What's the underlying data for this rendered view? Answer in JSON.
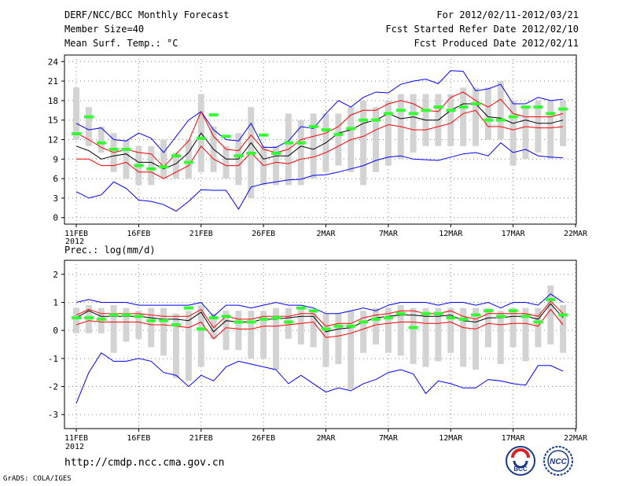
{
  "header": {
    "line1_left": "DERF/NCC/BCC Monthly Forecast",
    "line2_left": "Member Size=40",
    "line3_left": "Mean Surf. Temp.: °C",
    "line1_right": "For 2012/02/11-2012/03/21",
    "line2_right": "Fcst Started Refer Date 2012/02/10",
    "line3_right": "Fcst Produced Date 2012/02/11"
  },
  "footer": {
    "url": "http://cmdp.ncc.cma.gov.cn",
    "grads": "GrADS: COLA/IGES",
    "logo_bcc": "BCC",
    "logo_ncc": "NCC"
  },
  "colors": {
    "max_min": "#0000ff",
    "quartile": "#ff0000",
    "mean": "#000000",
    "marker": "#33ff33",
    "box": "#d3d3d3",
    "grid": "#808080"
  },
  "chart_data": [
    {
      "type": "box-line",
      "title": "",
      "ylim": [
        -1,
        25
      ],
      "yticks": [
        0,
        3,
        6,
        9,
        12,
        15,
        18,
        21,
        24
      ],
      "xticks": [
        "11FEB",
        "16FEB",
        "21FEB",
        "26FEB",
        "2MAR",
        "7MAR",
        "12MAR",
        "17MAR",
        "22MAR"
      ],
      "xtick_index": [
        0,
        5,
        10,
        15,
        20,
        25,
        30,
        35,
        40
      ],
      "year_label": "2012",
      "box_low": [
        12,
        11,
        10,
        7,
        6,
        5,
        5,
        6,
        6,
        6,
        7,
        7,
        6,
        5,
        3,
        5,
        5,
        5,
        5,
        6,
        7,
        8,
        7,
        5,
        7,
        8,
        9,
        10,
        11,
        11,
        11,
        11,
        11,
        12,
        12,
        8,
        9,
        10,
        9,
        11
      ],
      "box_high": [
        20,
        17,
        14,
        13,
        12,
        11,
        11,
        12,
        10,
        12,
        19,
        14,
        11,
        13,
        17,
        11,
        11,
        16,
        15,
        16,
        16,
        16,
        17,
        18,
        17,
        18,
        19,
        19,
        19,
        19,
        19,
        20,
        20,
        20,
        21,
        18,
        17,
        18,
        18,
        18
      ],
      "series": [
        {
          "name": "max",
          "values": [
            14.5,
            13.5,
            13.8,
            12,
            11.8,
            13,
            12.2,
            10,
            12.5,
            15,
            16.3,
            13.5,
            12,
            11.8,
            14.5,
            10.8,
            10.8,
            11.8,
            14,
            13.7,
            16,
            18,
            17,
            18.5,
            19.3,
            19.2,
            20.5,
            21,
            21.3,
            20.6,
            22.6,
            22.5,
            19.5,
            19.8,
            20.5,
            17.5,
            17.5,
            18.5,
            18,
            18.2
          ]
        },
        {
          "name": "q3",
          "values": [
            13,
            12,
            10.8,
            10,
            10.5,
            10,
            9.8,
            7.8,
            9.8,
            11.8,
            16.3,
            12.5,
            10.5,
            10.3,
            12.7,
            10.5,
            10,
            10.5,
            12,
            12.5,
            13,
            14,
            15.8,
            16.5,
            16.5,
            17.5,
            18,
            17.5,
            16.5,
            16.3,
            18.5,
            19.3,
            18,
            17,
            18.2,
            16,
            15.5,
            15.5,
            15.5,
            16
          ]
        },
        {
          "name": "mean",
          "values": [
            11,
            10.3,
            9,
            9.5,
            9.8,
            8.5,
            8.5,
            7.5,
            8.3,
            10,
            13,
            10.5,
            9,
            9,
            11.5,
            9,
            9.5,
            9.5,
            11,
            10.5,
            11.5,
            13,
            13.5,
            14.5,
            15,
            16,
            15.2,
            15.5,
            15,
            15,
            16.5,
            17.5,
            17.5,
            15.5,
            15.3,
            14.5,
            15,
            14.5,
            14.5,
            15
          ]
        },
        {
          "name": "q1",
          "values": [
            9,
            9,
            8,
            8,
            8.5,
            7,
            7,
            6,
            7,
            8,
            11,
            9,
            8,
            8,
            10,
            8,
            8.5,
            8.3,
            9,
            9.3,
            10,
            11,
            12,
            12.5,
            13.5,
            14.3,
            14,
            13.5,
            13.5,
            14,
            14.5,
            16,
            16.5,
            14,
            14,
            13.5,
            14,
            13.8,
            13.8,
            14
          ]
        },
        {
          "name": "min",
          "values": [
            4,
            3,
            3.5,
            5.5,
            4.5,
            2.7,
            2.5,
            2,
            1,
            2.5,
            4.3,
            4.2,
            4.2,
            1.3,
            4.7,
            5.2,
            5.5,
            5.8,
            5.9,
            6.5,
            6.6,
            7,
            7.5,
            8,
            8.8,
            9.3,
            9.5,
            9,
            8.9,
            8.8,
            9.3,
            9.8,
            10,
            9.5,
            11.5,
            10,
            10.5,
            9.5,
            9.3,
            9.2
          ]
        },
        {
          "name": "marker",
          "values": [
            12.9,
            15.5,
            11.5,
            10.5,
            10.5,
            8,
            7.5,
            7.8,
            9.5,
            8.5,
            12.2,
            15.8,
            12.5,
            9.5,
            9.9,
            12.7,
            9.9,
            11.5,
            11.5,
            14,
            13.5,
            12.8,
            13.7,
            15,
            15,
            16,
            16.5,
            16,
            16.5,
            17,
            16.5,
            17,
            17.5,
            15,
            15,
            15.5,
            17,
            17,
            16,
            16.7
          ]
        }
      ]
    },
    {
      "type": "box-line",
      "title": "Prec.: log(mm/d)",
      "ylim": [
        -3.5,
        2.5
      ],
      "yticks": [
        -3,
        -2,
        -1,
        0,
        1,
        2
      ],
      "xticks": [
        "11FEB",
        "16FEB",
        "21FEB",
        "26FEB",
        "2MAR",
        "7MAR",
        "12MAR",
        "17MAR",
        "22MAR"
      ],
      "xtick_index": [
        0,
        5,
        10,
        15,
        20,
        25,
        30,
        35,
        40
      ],
      "year_label": "2012",
      "box_low": [
        -0.1,
        -0.1,
        -0.1,
        -0.8,
        -0.4,
        -0.3,
        -0.6,
        -0.9,
        -1.7,
        -1.8,
        -1.3,
        -0.3,
        -0.7,
        -0.7,
        -1,
        -1,
        -1.4,
        -0.3,
        -0.5,
        -0.6,
        -1.3,
        -1.2,
        -2.1,
        -0.8,
        -0.5,
        -0.8,
        -0.9,
        -1.2,
        -1.3,
        -1.1,
        -0.8,
        -1.3,
        -1.4,
        -0.6,
        -1.2,
        -0.6,
        -1.1,
        -0.6,
        -0.5,
        -0.8
      ],
      "box_high": [
        0.8,
        0.9,
        0.8,
        0.9,
        0.8,
        0.7,
        0.8,
        0.8,
        0.6,
        0.7,
        0.9,
        0.6,
        0.7,
        0.7,
        0.7,
        0.7,
        0.8,
        0.8,
        0.8,
        0.7,
        0.6,
        0.6,
        0.7,
        0.7,
        0.8,
        0.8,
        0.9,
        0.8,
        0.8,
        0.8,
        0.8,
        0.8,
        0.8,
        0.8,
        0.7,
        0.8,
        0.8,
        0.8,
        1.6,
        0.9
      ],
      "series": [
        {
          "name": "max",
          "values": [
            1,
            1.1,
            1,
            1,
            1,
            0.9,
            0.9,
            0.9,
            0.9,
            0.9,
            1,
            0.5,
            0.9,
            0.9,
            0.8,
            0.9,
            1,
            0.9,
            0.9,
            0.8,
            0.6,
            0.6,
            0.7,
            0.8,
            0.7,
            0.9,
            1,
            1,
            1,
            0.9,
            1,
            1,
            0.9,
            1,
            0.8,
            1,
            1,
            0.9,
            1.3,
            1
          ]
        },
        {
          "name": "q3",
          "values": [
            0.55,
            0.75,
            0.6,
            0.6,
            0.6,
            0.6,
            0.55,
            0.5,
            0.5,
            0.5,
            0.75,
            0.1,
            0.5,
            0.4,
            0.4,
            0.5,
            0.5,
            0.5,
            0.6,
            0.6,
            0.15,
            0.25,
            0.25,
            0.45,
            0.55,
            0.6,
            0.7,
            0.7,
            0.6,
            0.6,
            0.7,
            0.5,
            0.4,
            0.6,
            0.6,
            0.6,
            0.6,
            0.5,
            1.05,
            0.6
          ]
        },
        {
          "name": "mean",
          "values": [
            0.45,
            0.7,
            0.5,
            0.5,
            0.5,
            0.5,
            0.45,
            0.4,
            0.4,
            0.35,
            0.65,
            -0.05,
            0.35,
            0.3,
            0.3,
            0.4,
            0.4,
            0.45,
            0.5,
            0.5,
            -0.05,
            0.05,
            0.1,
            0.3,
            0.45,
            0.5,
            0.55,
            0.55,
            0.5,
            0.5,
            0.55,
            0.35,
            0.3,
            0.45,
            0.45,
            0.5,
            0.5,
            0.4,
            0.95,
            0.45
          ]
        },
        {
          "name": "q1",
          "values": [
            0.2,
            0.35,
            0.3,
            0.3,
            0.3,
            0.3,
            0.2,
            0.2,
            0.15,
            0.1,
            0.3,
            -0.3,
            0.1,
            0.05,
            0.05,
            0.15,
            0.15,
            0.2,
            0.25,
            0.3,
            -0.25,
            -0.2,
            -0.1,
            0.05,
            0.2,
            0.25,
            0.3,
            0.3,
            0.25,
            0.25,
            0.3,
            0.1,
            0.05,
            0.25,
            0.2,
            0.25,
            0.25,
            0.15,
            0.75,
            0.2
          ]
        },
        {
          "name": "min",
          "values": [
            -2.6,
            -1.5,
            -0.8,
            -1.1,
            -1.1,
            -1,
            -1.1,
            -1.5,
            -1.6,
            -2,
            -1.6,
            -1.8,
            -1.3,
            -1.1,
            -1.2,
            -1.3,
            -1.4,
            -1.9,
            -1.6,
            -1.9,
            -2.2,
            -2.05,
            -2.15,
            -1.9,
            -1.75,
            -1.5,
            -1.4,
            -1.55,
            -2.25,
            -1.8,
            -1.9,
            -2.05,
            -2.05,
            -1.75,
            -1.8,
            -1.9,
            -1.95,
            -1.25,
            -1.25,
            -1.45
          ]
        },
        {
          "name": "marker",
          "values": [
            0.45,
            0.45,
            0.4,
            0.55,
            0.55,
            0.5,
            0.35,
            0.35,
            0.2,
            0.8,
            0.05,
            0.45,
            0.5,
            0.3,
            0.3,
            0.4,
            0.45,
            0.3,
            0.8,
            0.7,
            0.05,
            0.15,
            0.15,
            0.3,
            0.4,
            0.45,
            0.6,
            0.1,
            0.6,
            0.6,
            0.45,
            0.4,
            0.55,
            0.7,
            0.5,
            0.7,
            0.5,
            0.3,
            1.1,
            0.55
          ]
        }
      ]
    }
  ]
}
